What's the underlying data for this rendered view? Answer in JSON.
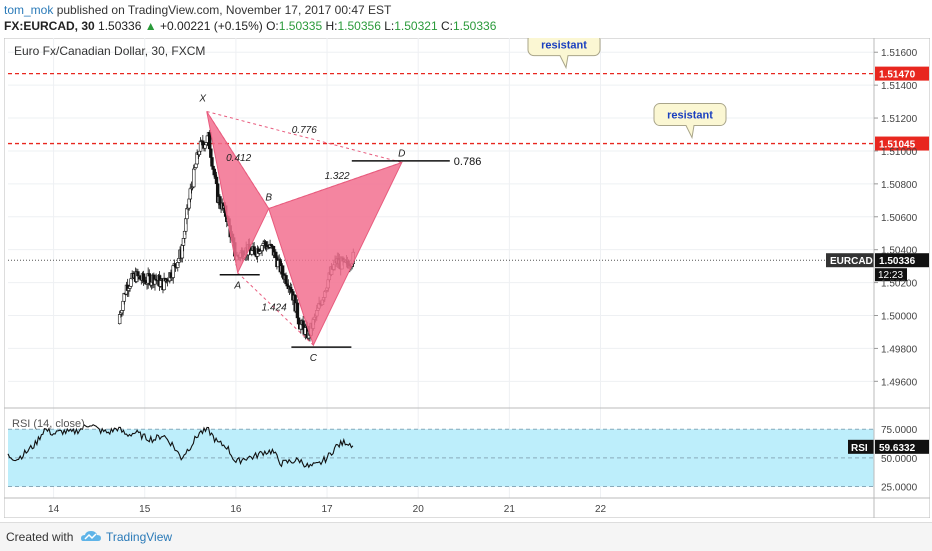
{
  "header": {
    "author": "tom_mok",
    "published": "published on TradingView.com, November 17, 2017 00:47 EST",
    "symbol": "FX:EURCAD, 30",
    "price": "1.50336",
    "change": "+0.00221 (+0.15%)",
    "o_label": "O:",
    "o_value": "1.50335",
    "h_label": "H:",
    "h_value": "1.50356",
    "l_label": "L:",
    "l_value": "1.50321",
    "c_label": "C:",
    "c_value": "1.50336"
  },
  "footer": {
    "created": "Created with",
    "brand": "TradingView"
  },
  "chart_data": {
    "type": "candlestick",
    "title": "Euro Fx/Canadian Dollar, 30, FXCM",
    "price_axis": {
      "ylim": [
        1.4945,
        1.5165
      ],
      "ticks": [
        "1.51600",
        "1.51400",
        "1.51200",
        "1.51000",
        "1.50800",
        "1.50600",
        "1.50400",
        "1.50200",
        "1.50000",
        "1.49800",
        "1.49600"
      ],
      "tick_values": [
        1.516,
        1.514,
        1.512,
        1.51,
        1.508,
        1.506,
        1.504,
        1.502,
        1.5,
        1.498,
        1.496
      ]
    },
    "time_axis": {
      "xlim": [
        13.5,
        23.0
      ],
      "ticks": [
        "14",
        "15",
        "16",
        "17",
        "20",
        "21",
        "22"
      ],
      "tick_values": [
        14,
        15,
        16,
        17,
        18,
        19,
        20
      ]
    },
    "resistance_lines": [
      {
        "label": "resistant",
        "price": 1.5147,
        "price_label": "1.51470"
      },
      {
        "label": "resistant",
        "price": 1.51045,
        "price_label": "1.51045"
      }
    ],
    "current": {
      "symbol": "EURCAD",
      "price": 1.50336,
      "price_label": "1.50336",
      "countdown": "12:23"
    },
    "pattern": {
      "points": [
        {
          "name": "X",
          "x": 15.68,
          "y": 1.5124
        },
        {
          "name": "A",
          "x": 16.02,
          "y": 1.5026
        },
        {
          "name": "B",
          "x": 16.36,
          "y": 1.5065
        },
        {
          "name": "C",
          "x": 16.85,
          "y": 1.4982
        },
        {
          "name": "D",
          "x": 17.82,
          "y": 1.5093
        }
      ],
      "ratios": [
        {
          "label": "0.412",
          "x": 16.03,
          "y": 1.5094
        },
        {
          "label": "0.776",
          "x": 16.75,
          "y": 1.5111
        },
        {
          "label": "1.322",
          "x": 17.11,
          "y": 1.5083
        },
        {
          "label": "1.424",
          "x": 16.42,
          "y": 1.5003
        }
      ],
      "d_level": {
        "label": "0.786",
        "y": 1.5094
      }
    },
    "close_series": {
      "x": [
        13.6,
        13.7,
        13.8,
        13.9,
        14.0,
        14.1,
        14.2,
        14.3,
        14.4,
        14.5,
        14.6,
        14.7,
        14.8,
        14.9,
        15.0,
        15.1,
        15.2,
        15.3,
        15.4,
        15.5,
        15.6,
        15.7,
        15.8,
        15.9,
        16.0,
        16.1,
        16.2,
        16.3,
        16.4,
        16.5,
        16.6,
        16.7,
        16.8,
        16.9,
        17.0,
        17.1,
        17.2,
        17.3
      ],
      "y": [
        1.4955,
        1.4955,
        1.4955,
        1.4955,
        1.4955,
        1.4955,
        1.4955,
        1.4955,
        1.4955,
        1.4955,
        1.4958,
        1.4995,
        1.5018,
        1.5024,
        1.5021,
        1.5023,
        1.5019,
        1.5027,
        1.5038,
        1.5075,
        1.5102,
        1.5108,
        1.5072,
        1.506,
        1.5035,
        1.504,
        1.5038,
        1.5044,
        1.504,
        1.5027,
        1.5018,
        1.4995,
        1.4988,
        1.5003,
        1.502,
        1.5033,
        1.503,
        1.5036
      ]
    },
    "rsi": {
      "label": "RSI (14, close)",
      "current_label": "RSI",
      "current": 59.6332,
      "current_text": "59.6332",
      "ylim": [
        15,
        90
      ],
      "ticks": [
        "75.0000",
        "50.0000",
        "25.0000"
      ],
      "tick_values": [
        75,
        50,
        25
      ],
      "band": [
        25,
        75
      ],
      "x": [
        13.5,
        13.6,
        13.7,
        13.8,
        13.9,
        14.0,
        14.1,
        14.2,
        14.3,
        14.4,
        14.5,
        14.6,
        14.7,
        14.8,
        14.9,
        15.0,
        15.1,
        15.2,
        15.3,
        15.4,
        15.5,
        15.6,
        15.7,
        15.8,
        15.9,
        16.0,
        16.1,
        16.2,
        16.3,
        16.4,
        16.5,
        16.6,
        16.7,
        16.8,
        16.9,
        17.0,
        17.1,
        17.2,
        17.3
      ],
      "values": [
        52,
        49,
        55,
        62,
        75,
        71,
        73,
        72,
        75,
        80,
        74,
        72,
        76,
        70,
        72,
        68,
        66,
        70,
        62,
        50,
        60,
        72,
        74,
        63,
        60,
        46,
        50,
        51,
        55,
        56,
        45,
        47,
        48,
        42,
        44,
        50,
        60,
        64,
        61
      ]
    }
  }
}
